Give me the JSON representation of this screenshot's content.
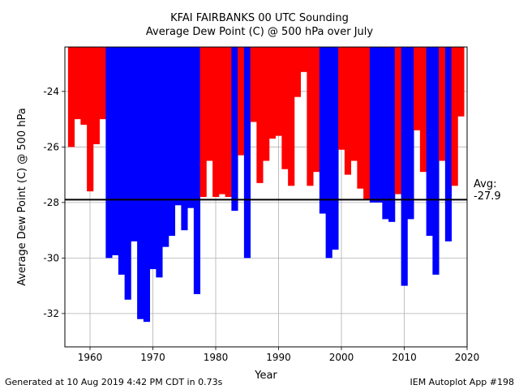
{
  "chart_data": {
    "type": "bar",
    "title": "KFAI FAIRBANKS 00 UTC Sounding",
    "subtitle": "Average Dew Point (C) @ 500 hPa over July",
    "xlabel": "Year",
    "ylabel": "Average Dew Point (C) @ 500 hPa",
    "xlim": [
      1956,
      2020
    ],
    "ylim": [
      -33.2,
      -22.4
    ],
    "xticks": [
      "1960",
      "1970",
      "1980",
      "1990",
      "2000",
      "2010",
      "2020"
    ],
    "yticks": [
      "-24",
      "-26",
      "-28",
      "-30",
      "-32"
    ],
    "grid": true,
    "average": -27.9,
    "avg_label": "Avg:",
    "avg_value": "-27.9",
    "above_color": "#ff0000",
    "below_color": "#0000ff",
    "avg_line_color": "#000000",
    "years": [
      1957,
      1958,
      1959,
      1960,
      1961,
      1962,
      1963,
      1964,
      1965,
      1966,
      1967,
      1968,
      1969,
      1970,
      1971,
      1972,
      1973,
      1974,
      1975,
      1976,
      1977,
      1978,
      1979,
      1980,
      1981,
      1982,
      1983,
      1984,
      1985,
      1986,
      1987,
      1988,
      1989,
      1990,
      1991,
      1992,
      1993,
      1994,
      1995,
      1996,
      1997,
      1998,
      1999,
      2000,
      2001,
      2002,
      2003,
      2004,
      2005,
      2006,
      2007,
      2008,
      2009,
      2010,
      2011,
      2012,
      2013,
      2014,
      2015,
      2016,
      2017,
      2018,
      2019
    ],
    "values": [
      -26.0,
      -25.0,
      -25.2,
      -27.6,
      -25.9,
      -25.0,
      -30.0,
      -29.9,
      -30.6,
      -31.5,
      -29.4,
      -32.2,
      -32.3,
      -30.4,
      -30.7,
      -29.6,
      -29.2,
      -28.1,
      -29.0,
      -28.2,
      -31.3,
      -27.8,
      -26.5,
      -27.8,
      -27.7,
      -27.8,
      -28.3,
      -26.3,
      -30.0,
      -25.1,
      -27.3,
      -26.5,
      -25.7,
      -25.6,
      -26.8,
      -27.4,
      -24.2,
      -23.3,
      -27.4,
      -26.9,
      -28.4,
      -30.0,
      -29.7,
      -26.1,
      -27.0,
      -26.5,
      -27.5,
      -27.9,
      -28.0,
      -28.0,
      -28.6,
      -28.7,
      -27.7,
      -31.0,
      -28.6,
      -25.4,
      -26.9,
      -29.2,
      -30.6,
      -26.5,
      -29.4,
      -27.4,
      -24.9
    ]
  },
  "footer": {
    "generated": "Generated at 10 Aug 2019 4:42 PM CDT in 0.73s",
    "app": "IEM Autoplot App #198"
  }
}
